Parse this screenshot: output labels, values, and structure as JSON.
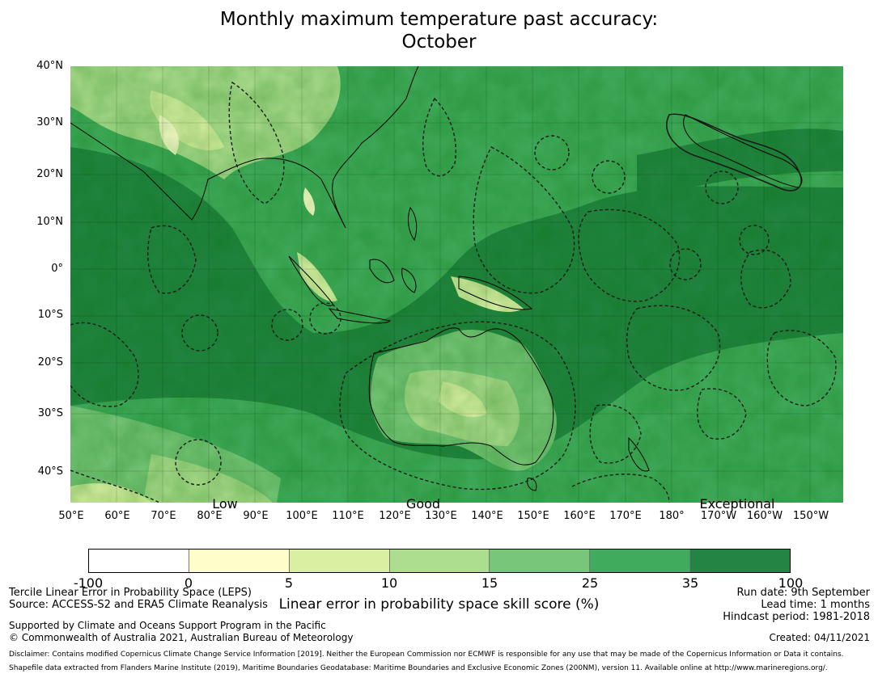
{
  "title_line1": "Monthly maximum temperature past accuracy:",
  "title_line2": "October",
  "map": {
    "lat_labels": [
      "40°N",
      "30°N",
      "20°N",
      "10°N",
      "0°",
      "10°S",
      "20°S",
      "30°S",
      "40°S"
    ],
    "lon_labels": [
      "50°E",
      "60°E",
      "70°E",
      "80°E",
      "90°E",
      "100°E",
      "110°E",
      "120°E",
      "130°E",
      "140°E",
      "150°E",
      "160°E",
      "170°E",
      "180°",
      "170°W",
      "160°W",
      "150°W"
    ],
    "category_labels": [
      "Low",
      "Good",
      "Exceptional"
    ]
  },
  "colorbar": {
    "title": "Linear error in probability space skill score (%)",
    "ticks": [
      "-100",
      "0",
      "5",
      "10",
      "15",
      "25",
      "35",
      "100"
    ],
    "colors": [
      "#ffffff",
      "#ffffcc",
      "#d9f0a3",
      "#addd8e",
      "#78c679",
      "#41ab5d",
      "#238443"
    ]
  },
  "footer": {
    "left_line1": "Tercile Linear Error in Probability Space (LEPS)",
    "left_line2": "Source: ACCESS-S2 and ERA5 Climate Reanalysis",
    "support_line1": "Supported by Climate and Oceans Support Program in the Pacific",
    "support_line2": "© Commonwealth of Australia 2021, Australian Bureau of Meteorology",
    "run_date": "Run date: 9th September",
    "lead_time": "Lead time: 1 months",
    "hindcast": "Hindcast period: 1981-2018",
    "created": "Created: 04/11/2021",
    "disclaimer": "Disclaimer: Contains modified Copernicus Climate Change Service Information [2019]. Neither the European Commission nor ECMWF is responsible for any use that may be made of the Copernicus Information or Data it contains.",
    "shapefile": "Shapefile data extracted from Flanders Marine Institute (2019), Maritime Boundaries Geodatabase: Maritime Boundaries and Exclusive Economic Zones (200NM), version 11. Available online at http://www.marineregions.org/."
  }
}
